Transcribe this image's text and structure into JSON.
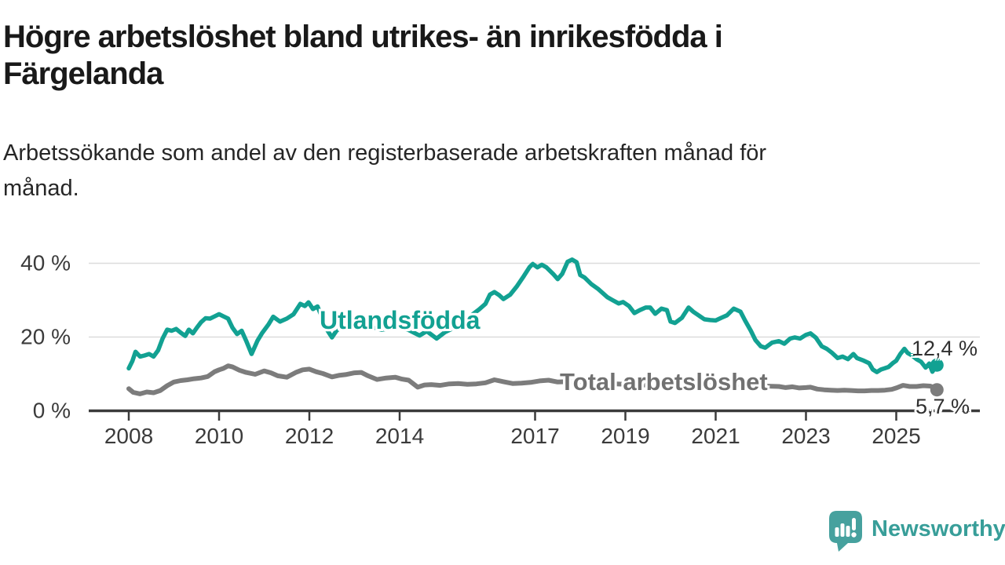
{
  "header": {
    "title_lines": [
      "Högre arbetslöshet bland utrikes- än inrikesfödda i",
      "Färgelanda"
    ],
    "subtitle_lines": [
      "Arbetssökande som andel av den registerbaserade arbetskraften månad för",
      "månad."
    ]
  },
  "footer": {
    "brand": "Newsworthy"
  },
  "chart_data": {
    "type": "line",
    "title": "Högre arbetslöshet bland utrikes- än inrikesfödda i Färgelanda",
    "subtitle": "Arbetssökande som andel av den registerbaserade arbetskraften månad för månad.",
    "xlabel": "",
    "ylabel": "",
    "unit": "%",
    "grid": "horizontal",
    "legend_position": "inline-labels",
    "xlim": [
      2007.9,
      2026.2
    ],
    "ylim": [
      0,
      44
    ],
    "x_ticks": [
      2008,
      2010,
      2012,
      2014,
      2017,
      2019,
      2021,
      2023,
      2025
    ],
    "x_tick_labels": [
      "2008",
      "2010",
      "2012",
      "2014",
      "2017",
      "2019",
      "2021",
      "2023",
      "2025"
    ],
    "y_ticks": [
      0,
      20,
      40
    ],
    "y_tick_labels": [
      "0 %",
      "20 %",
      "40 %"
    ],
    "colors": {
      "axis": "#3b3b3b",
      "grid": "#dcdcdc",
      "teal": "#12a192",
      "gray": "#7c7c7c"
    },
    "series": [
      {
        "name": "Utlandsfödda",
        "color": "#12a192",
        "end_value": 12.4,
        "end_label": "12,4 %",
        "points": [
          [
            2008.0,
            11.5
          ],
          [
            2008.08,
            13.5
          ],
          [
            2008.15,
            16.0
          ],
          [
            2008.25,
            14.7
          ],
          [
            2008.35,
            15.0
          ],
          [
            2008.45,
            15.4
          ],
          [
            2008.55,
            14.7
          ],
          [
            2008.65,
            16.4
          ],
          [
            2008.75,
            19.6
          ],
          [
            2008.85,
            22.0
          ],
          [
            2008.95,
            21.7
          ],
          [
            2009.05,
            22.2
          ],
          [
            2009.15,
            21.2
          ],
          [
            2009.25,
            20.3
          ],
          [
            2009.33,
            22.0
          ],
          [
            2009.42,
            21.0
          ],
          [
            2009.5,
            22.4
          ],
          [
            2009.6,
            24.0
          ],
          [
            2009.7,
            25.1
          ],
          [
            2009.8,
            25.0
          ],
          [
            2009.9,
            25.6
          ],
          [
            2010.0,
            26.2
          ],
          [
            2010.1,
            25.6
          ],
          [
            2010.2,
            25.0
          ],
          [
            2010.3,
            22.5
          ],
          [
            2010.4,
            20.8
          ],
          [
            2010.5,
            21.7
          ],
          [
            2010.6,
            19.0
          ],
          [
            2010.72,
            15.4
          ],
          [
            2010.85,
            19.0
          ],
          [
            2010.95,
            21.0
          ],
          [
            2011.1,
            23.5
          ],
          [
            2011.2,
            25.5
          ],
          [
            2011.35,
            24.2
          ],
          [
            2011.5,
            25.0
          ],
          [
            2011.65,
            26.2
          ],
          [
            2011.8,
            29.0
          ],
          [
            2011.9,
            28.4
          ],
          [
            2011.98,
            29.4
          ],
          [
            2012.08,
            27.6
          ],
          [
            2012.18,
            28.3
          ],
          [
            2012.3,
            24.8
          ],
          [
            2012.4,
            21.8
          ],
          [
            2012.5,
            19.9
          ],
          [
            2012.6,
            21.7
          ],
          [
            2012.75,
            23.2
          ],
          [
            2012.9,
            23.8
          ],
          [
            2013.05,
            24.0
          ],
          [
            2013.2,
            23.3
          ],
          [
            2013.4,
            22.6
          ],
          [
            2013.6,
            22.0
          ],
          [
            2013.8,
            22.4
          ],
          [
            2014.0,
            22.8
          ],
          [
            2014.2,
            21.9
          ],
          [
            2014.44,
            20.4
          ],
          [
            2014.6,
            21.6
          ],
          [
            2014.82,
            19.6
          ],
          [
            2015.0,
            21.3
          ],
          [
            2015.2,
            22.5
          ],
          [
            2015.45,
            24.2
          ],
          [
            2015.6,
            26.0
          ],
          [
            2015.76,
            27.5
          ],
          [
            2015.9,
            29.0
          ],
          [
            2016.0,
            31.5
          ],
          [
            2016.1,
            32.2
          ],
          [
            2016.2,
            31.4
          ],
          [
            2016.3,
            30.3
          ],
          [
            2016.45,
            31.5
          ],
          [
            2016.6,
            33.8
          ],
          [
            2016.75,
            36.5
          ],
          [
            2016.88,
            39.0
          ],
          [
            2016.95,
            39.8
          ],
          [
            2017.05,
            38.9
          ],
          [
            2017.15,
            39.6
          ],
          [
            2017.25,
            38.9
          ],
          [
            2017.4,
            37.1
          ],
          [
            2017.5,
            35.7
          ],
          [
            2017.6,
            37.1
          ],
          [
            2017.72,
            40.4
          ],
          [
            2017.82,
            41.0
          ],
          [
            2017.92,
            40.3
          ],
          [
            2018.0,
            36.8
          ],
          [
            2018.1,
            36.1
          ],
          [
            2018.25,
            34.3
          ],
          [
            2018.4,
            33.0
          ],
          [
            2018.6,
            30.8
          ],
          [
            2018.7,
            30.1
          ],
          [
            2018.85,
            29.1
          ],
          [
            2018.95,
            29.5
          ],
          [
            2019.08,
            28.4
          ],
          [
            2019.2,
            26.5
          ],
          [
            2019.32,
            27.3
          ],
          [
            2019.45,
            28.0
          ],
          [
            2019.55,
            28.0
          ],
          [
            2019.66,
            26.3
          ],
          [
            2019.8,
            27.7
          ],
          [
            2019.92,
            27.3
          ],
          [
            2020.0,
            24.2
          ],
          [
            2020.1,
            23.8
          ],
          [
            2020.25,
            25.2
          ],
          [
            2020.4,
            28.0
          ],
          [
            2020.5,
            26.9
          ],
          [
            2020.62,
            25.9
          ],
          [
            2020.75,
            24.8
          ],
          [
            2020.88,
            24.6
          ],
          [
            2021.0,
            24.5
          ],
          [
            2021.12,
            25.2
          ],
          [
            2021.25,
            25.9
          ],
          [
            2021.4,
            27.7
          ],
          [
            2021.55,
            26.9
          ],
          [
            2021.65,
            24.5
          ],
          [
            2021.78,
            21.7
          ],
          [
            2021.88,
            19.2
          ],
          [
            2022.0,
            17.5
          ],
          [
            2022.1,
            17.1
          ],
          [
            2022.25,
            18.5
          ],
          [
            2022.4,
            18.9
          ],
          [
            2022.52,
            18.2
          ],
          [
            2022.65,
            19.6
          ],
          [
            2022.75,
            19.9
          ],
          [
            2022.87,
            19.6
          ],
          [
            2023.0,
            20.6
          ],
          [
            2023.1,
            21.0
          ],
          [
            2023.22,
            19.8
          ],
          [
            2023.35,
            17.5
          ],
          [
            2023.46,
            16.8
          ],
          [
            2023.58,
            15.7
          ],
          [
            2023.7,
            14.3
          ],
          [
            2023.81,
            14.7
          ],
          [
            2023.93,
            14.0
          ],
          [
            2024.05,
            15.4
          ],
          [
            2024.13,
            14.3
          ],
          [
            2024.28,
            13.6
          ],
          [
            2024.4,
            12.9
          ],
          [
            2024.48,
            11.2
          ],
          [
            2024.57,
            10.5
          ],
          [
            2024.66,
            11.2
          ],
          [
            2024.74,
            11.5
          ],
          [
            2024.83,
            11.9
          ],
          [
            2024.92,
            12.9
          ],
          [
            2025.0,
            13.6
          ],
          [
            2025.09,
            15.4
          ],
          [
            2025.18,
            16.8
          ],
          [
            2025.25,
            15.7
          ],
          [
            2025.35,
            15.0
          ],
          [
            2025.45,
            14.0
          ],
          [
            2025.55,
            13.3
          ],
          [
            2025.65,
            11.7
          ],
          [
            2025.73,
            12.8
          ],
          [
            2025.8,
            10.6
          ],
          [
            2025.9,
            12.4
          ]
        ]
      },
      {
        "name": "Total arbetslöshet",
        "color": "#7c7c7c",
        "end_value": 5.7,
        "end_label": "5,7 %",
        "points": [
          [
            2008.0,
            6.0
          ],
          [
            2008.1,
            5.0
          ],
          [
            2008.25,
            4.6
          ],
          [
            2008.4,
            5.1
          ],
          [
            2008.55,
            4.9
          ],
          [
            2008.7,
            5.5
          ],
          [
            2008.85,
            6.8
          ],
          [
            2009.0,
            7.8
          ],
          [
            2009.15,
            8.2
          ],
          [
            2009.3,
            8.4
          ],
          [
            2009.45,
            8.7
          ],
          [
            2009.6,
            8.9
          ],
          [
            2009.75,
            9.3
          ],
          [
            2009.9,
            10.6
          ],
          [
            2010.0,
            11.1
          ],
          [
            2010.1,
            11.5
          ],
          [
            2010.2,
            12.2
          ],
          [
            2010.3,
            11.9
          ],
          [
            2010.45,
            11.0
          ],
          [
            2010.6,
            10.4
          ],
          [
            2010.8,
            9.9
          ],
          [
            2011.0,
            10.8
          ],
          [
            2011.15,
            10.3
          ],
          [
            2011.3,
            9.5
          ],
          [
            2011.5,
            9.1
          ],
          [
            2011.7,
            10.4
          ],
          [
            2011.85,
            11.1
          ],
          [
            2012.0,
            11.3
          ],
          [
            2012.15,
            10.6
          ],
          [
            2012.3,
            10.1
          ],
          [
            2012.5,
            9.2
          ],
          [
            2012.65,
            9.6
          ],
          [
            2012.8,
            9.8
          ],
          [
            2013.0,
            10.3
          ],
          [
            2013.15,
            10.4
          ],
          [
            2013.3,
            9.5
          ],
          [
            2013.5,
            8.5
          ],
          [
            2013.7,
            8.9
          ],
          [
            2013.9,
            9.1
          ],
          [
            2014.05,
            8.6
          ],
          [
            2014.2,
            8.3
          ],
          [
            2014.4,
            6.4
          ],
          [
            2014.55,
            7.0
          ],
          [
            2014.7,
            7.1
          ],
          [
            2014.9,
            6.9
          ],
          [
            2015.1,
            7.3
          ],
          [
            2015.3,
            7.4
          ],
          [
            2015.5,
            7.2
          ],
          [
            2015.7,
            7.3
          ],
          [
            2015.9,
            7.6
          ],
          [
            2016.1,
            8.4
          ],
          [
            2016.3,
            7.9
          ],
          [
            2016.5,
            7.4
          ],
          [
            2016.7,
            7.5
          ],
          [
            2016.9,
            7.7
          ],
          [
            2017.1,
            8.1
          ],
          [
            2017.3,
            8.3
          ],
          [
            2017.5,
            7.8
          ],
          [
            2017.7,
            7.9
          ],
          [
            2018.0,
            7.9
          ],
          [
            2018.3,
            7.7
          ],
          [
            2018.6,
            7.4
          ],
          [
            2019.0,
            7.2
          ],
          [
            2019.4,
            7.0
          ],
          [
            2019.8,
            7.1
          ],
          [
            2020.1,
            7.5
          ],
          [
            2020.4,
            7.9
          ],
          [
            2020.7,
            7.8
          ],
          [
            2021.0,
            7.6
          ],
          [
            2021.3,
            7.4
          ],
          [
            2021.6,
            7.1
          ],
          [
            2021.9,
            6.9
          ],
          [
            2022.1,
            6.7
          ],
          [
            2022.4,
            6.6
          ],
          [
            2022.55,
            6.3
          ],
          [
            2022.7,
            6.5
          ],
          [
            2022.85,
            6.2
          ],
          [
            2023.0,
            6.3
          ],
          [
            2023.1,
            6.4
          ],
          [
            2023.25,
            5.9
          ],
          [
            2023.4,
            5.7
          ],
          [
            2023.55,
            5.6
          ],
          [
            2023.7,
            5.5
          ],
          [
            2023.85,
            5.6
          ],
          [
            2024.0,
            5.5
          ],
          [
            2024.15,
            5.4
          ],
          [
            2024.3,
            5.4
          ],
          [
            2024.45,
            5.5
          ],
          [
            2024.6,
            5.5
          ],
          [
            2024.75,
            5.6
          ],
          [
            2024.9,
            5.8
          ],
          [
            2025.0,
            6.2
          ],
          [
            2025.15,
            6.9
          ],
          [
            2025.3,
            6.6
          ],
          [
            2025.45,
            6.6
          ],
          [
            2025.6,
            6.8
          ],
          [
            2025.75,
            6.7
          ],
          [
            2025.82,
            6.4
          ],
          [
            2025.9,
            5.7
          ]
        ]
      }
    ]
  }
}
